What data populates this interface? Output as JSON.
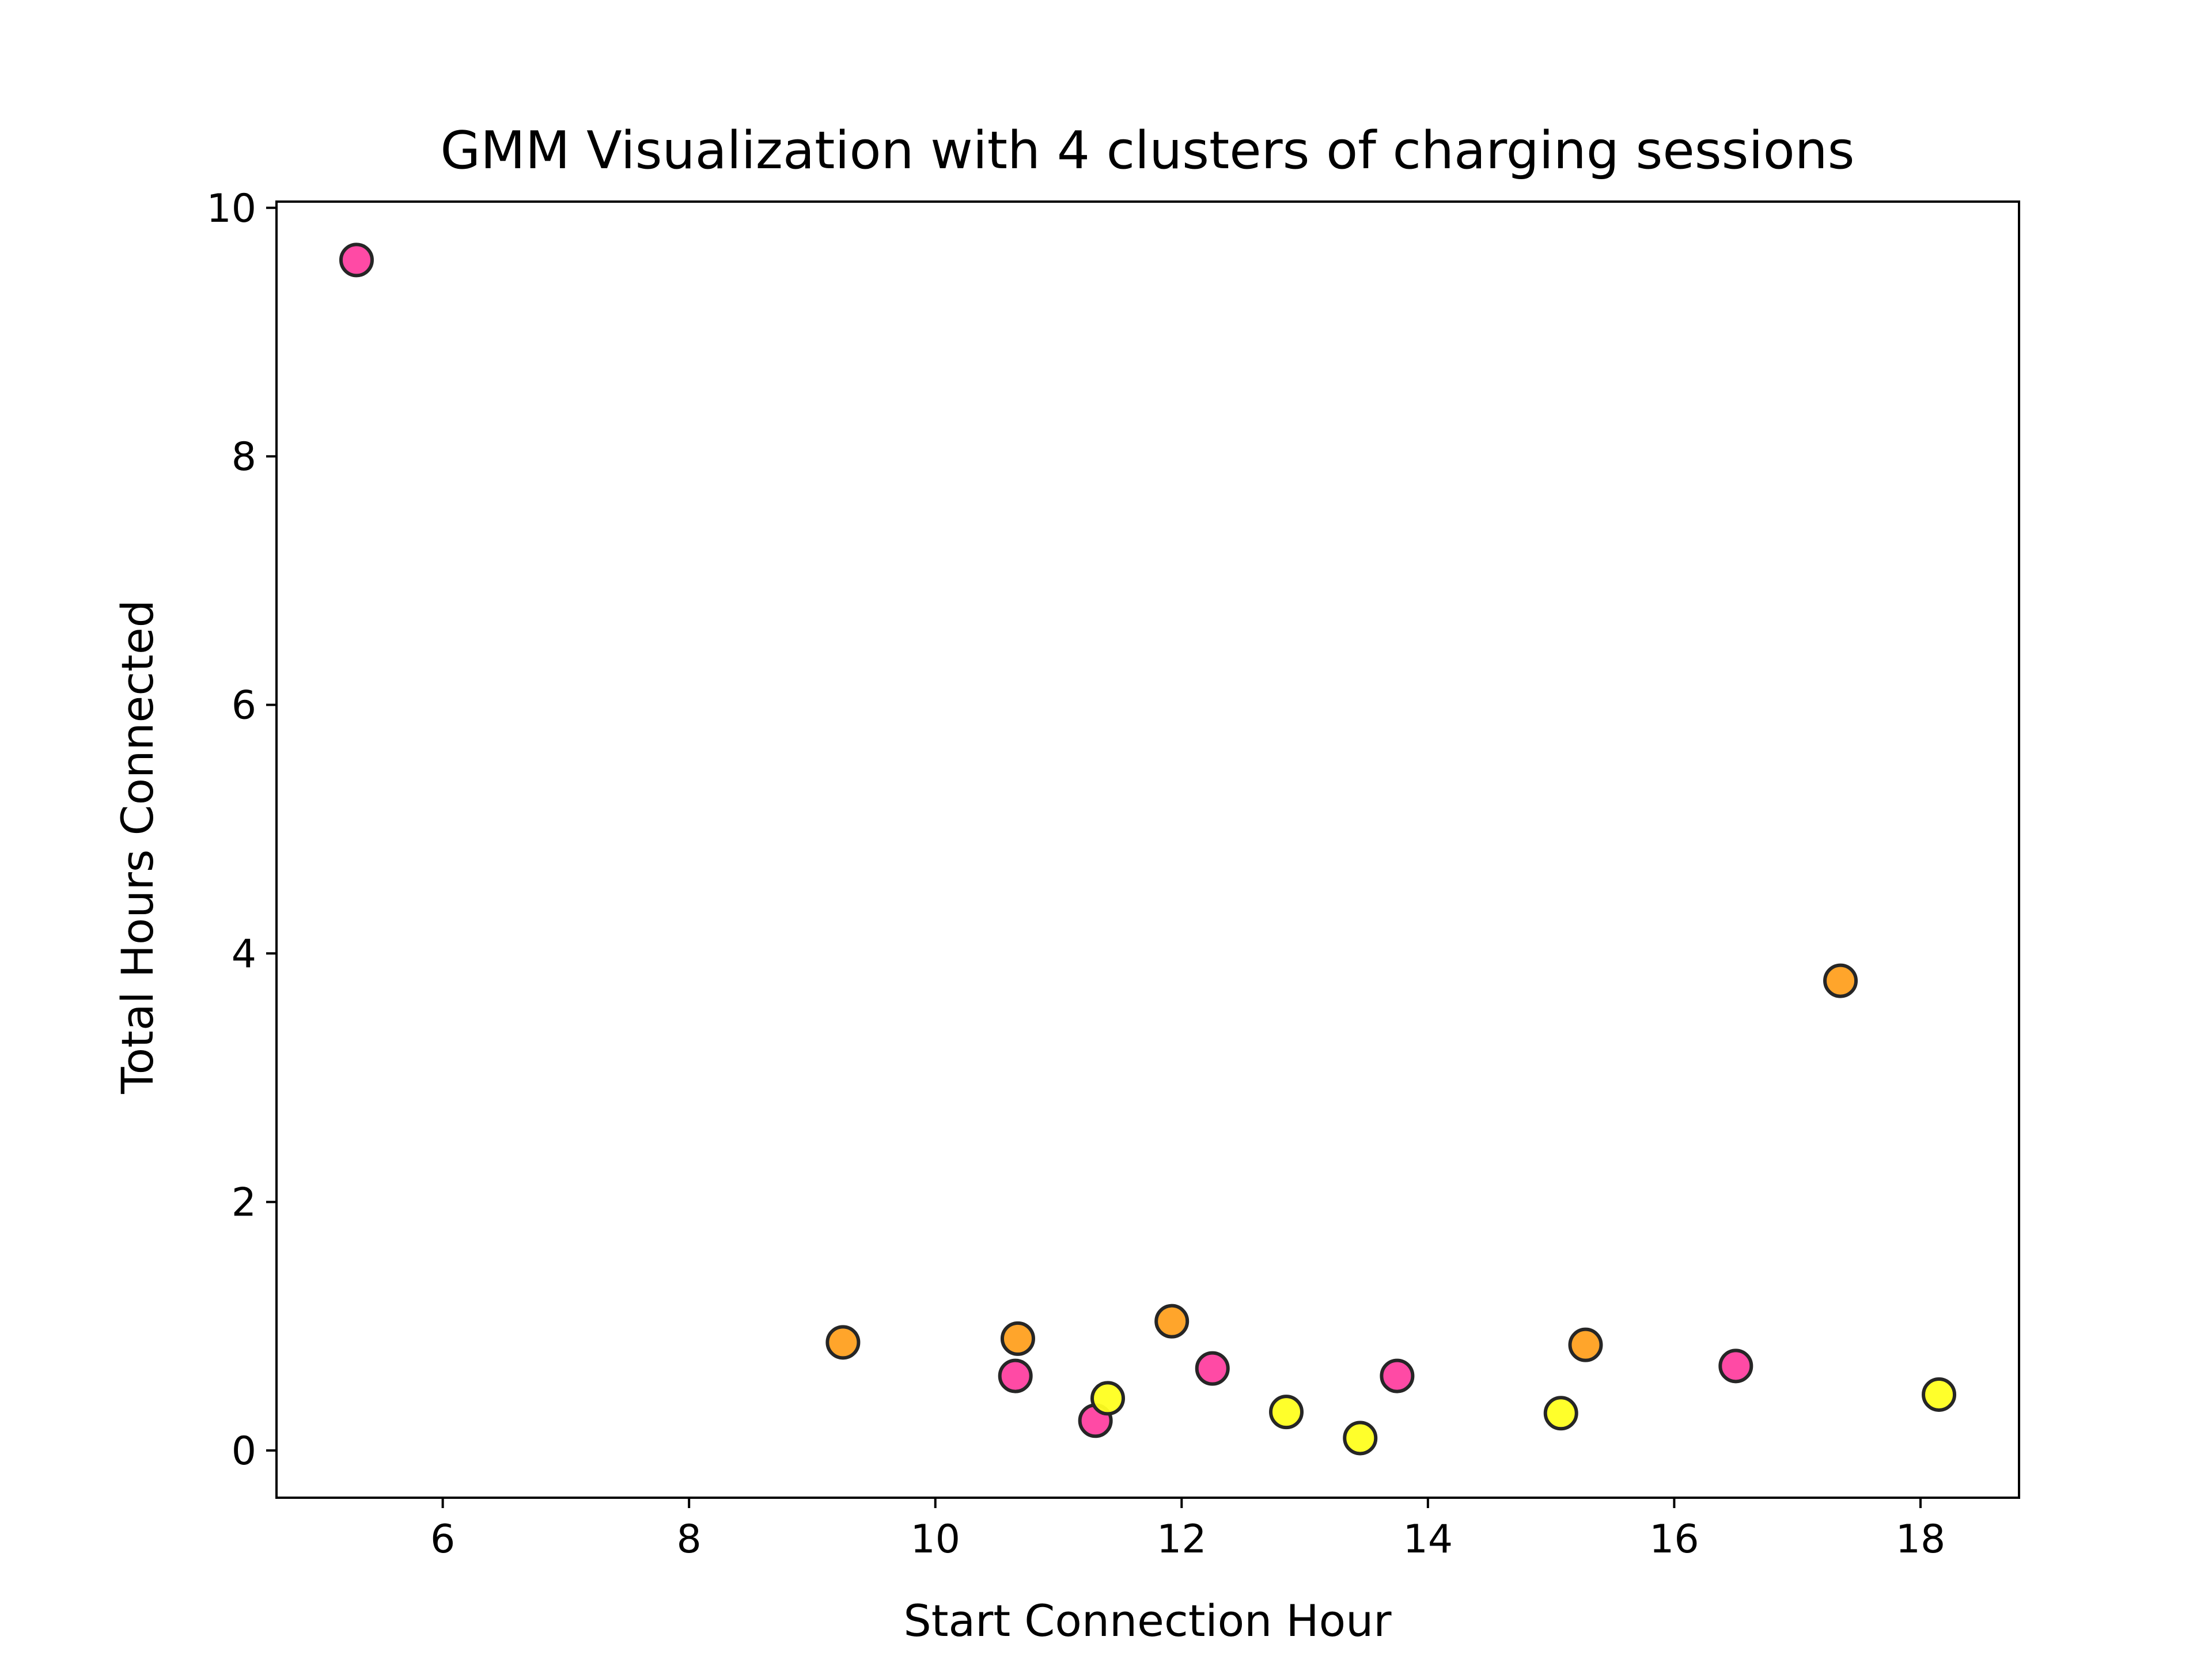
{
  "chart_data": {
    "type": "scatter",
    "title": "GMM Visualization with 4 clusters of charging sessions",
    "xlabel": "Start Connection Hour",
    "ylabel": "Total Hours Connected",
    "xlim": [
      4.65,
      18.8
    ],
    "ylim": [
      -0.38,
      10.05
    ],
    "xticks": [
      6,
      8,
      10,
      12,
      14,
      16,
      18
    ],
    "yticks": [
      0,
      2,
      4,
      6,
      8,
      10
    ],
    "grid": false,
    "marker_edge_color": "#262626",
    "series": [
      {
        "color": "#ff40a0",
        "points": [
          {
            "x": 5.3,
            "y": 9.58
          },
          {
            "x": 10.65,
            "y": 0.6
          },
          {
            "x": 11.3,
            "y": 0.24
          },
          {
            "x": 12.25,
            "y": 0.66
          },
          {
            "x": 13.75,
            "y": 0.6
          },
          {
            "x": 16.5,
            "y": 0.68
          }
        ]
      },
      {
        "color": "#ffa020",
        "points": [
          {
            "x": 9.25,
            "y": 0.87
          },
          {
            "x": 10.67,
            "y": 0.9
          },
          {
            "x": 11.92,
            "y": 1.04
          },
          {
            "x": 15.28,
            "y": 0.85
          },
          {
            "x": 17.35,
            "y": 3.78
          }
        ]
      },
      {
        "color": "#ffff20",
        "points": [
          {
            "x": 11.4,
            "y": 0.42
          },
          {
            "x": 12.85,
            "y": 0.31
          },
          {
            "x": 13.45,
            "y": 0.1
          },
          {
            "x": 15.08,
            "y": 0.3
          },
          {
            "x": 18.15,
            "y": 0.45
          }
        ]
      }
    ]
  }
}
